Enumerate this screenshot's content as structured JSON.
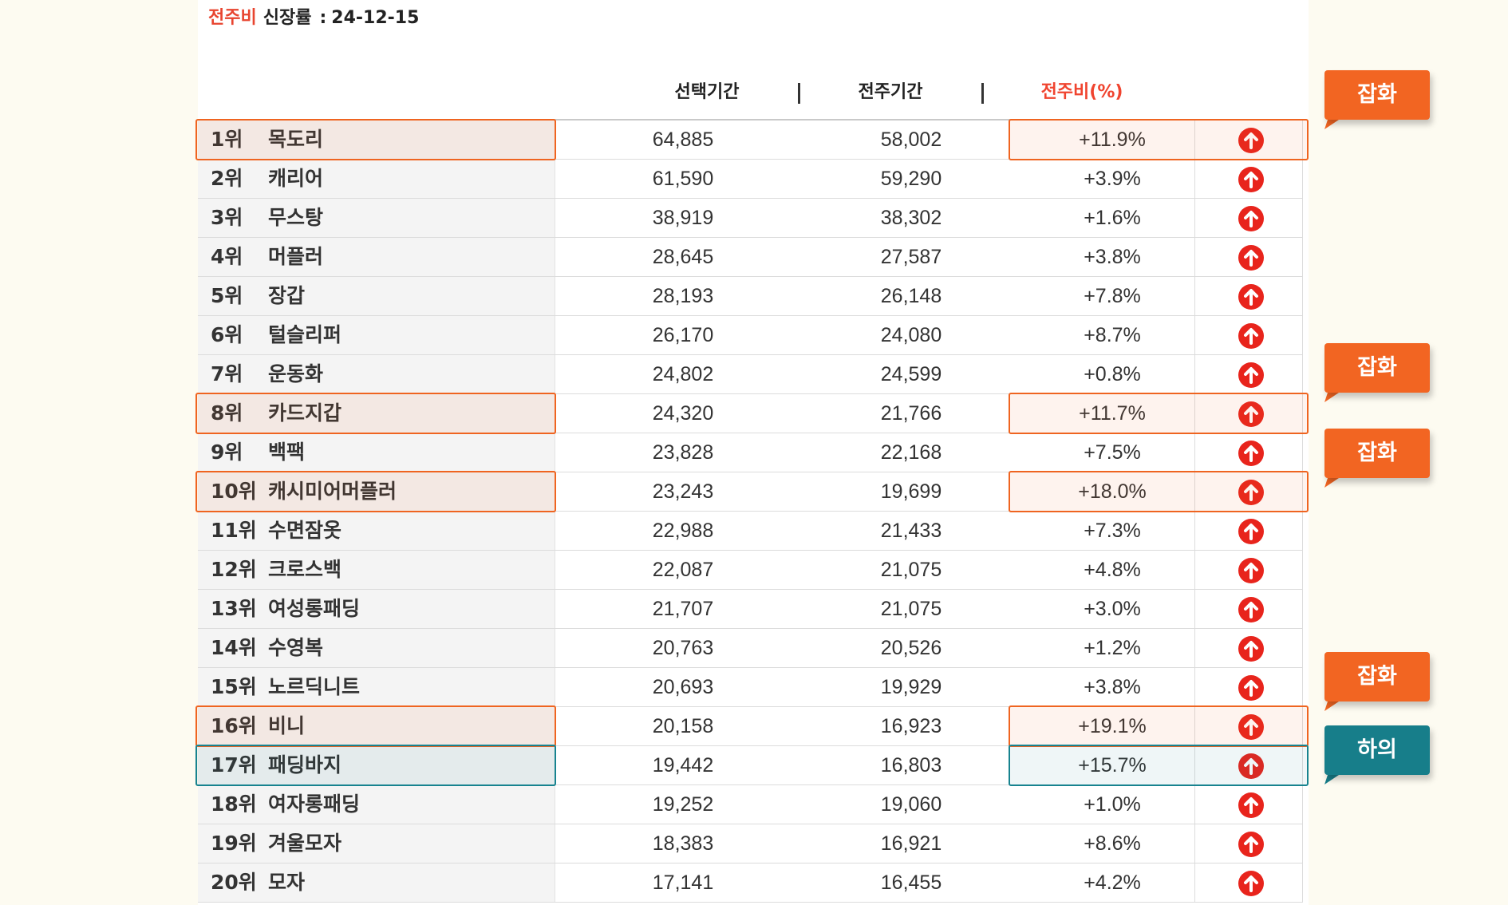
{
  "header": {
    "label_accent": "전주비",
    "label_main": "신장률",
    "colon": ":",
    "date": "24-12-15"
  },
  "columns": {
    "selected": "선택기간",
    "previous": "전주기간",
    "change": "전주비(%)"
  },
  "rows": [
    {
      "rank": "1위",
      "keyword": "목도리",
      "selected": "64,885",
      "previous": "58,002",
      "change": "+11.9%"
    },
    {
      "rank": "2위",
      "keyword": "캐리어",
      "selected": "61,590",
      "previous": "59,290",
      "change": "+3.9%"
    },
    {
      "rank": "3위",
      "keyword": "무스탕",
      "selected": "38,919",
      "previous": "38,302",
      "change": "+1.6%"
    },
    {
      "rank": "4위",
      "keyword": "머플러",
      "selected": "28,645",
      "previous": "27,587",
      "change": "+3.8%"
    },
    {
      "rank": "5위",
      "keyword": "장갑",
      "selected": "28,193",
      "previous": "26,148",
      "change": "+7.8%"
    },
    {
      "rank": "6위",
      "keyword": "털슬리퍼",
      "selected": "26,170",
      "previous": "24,080",
      "change": "+8.7%"
    },
    {
      "rank": "7위",
      "keyword": "운동화",
      "selected": "24,802",
      "previous": "24,599",
      "change": "+0.8%"
    },
    {
      "rank": "8위",
      "keyword": "카드지갑",
      "selected": "24,320",
      "previous": "21,766",
      "change": "+11.7%"
    },
    {
      "rank": "9위",
      "keyword": "백팩",
      "selected": "23,828",
      "previous": "22,168",
      "change": "+7.5%"
    },
    {
      "rank": "10위",
      "keyword": "캐시미어머플러",
      "selected": "23,243",
      "previous": "19,699",
      "change": "+18.0%"
    },
    {
      "rank": "11위",
      "keyword": "수면잠옷",
      "selected": "22,988",
      "previous": "21,433",
      "change": "+7.3%"
    },
    {
      "rank": "12위",
      "keyword": "크로스백",
      "selected": "22,087",
      "previous": "21,075",
      "change": "+4.8%"
    },
    {
      "rank": "13위",
      "keyword": "여성롱패딩",
      "selected": "21,707",
      "previous": "21,075",
      "change": "+3.0%"
    },
    {
      "rank": "14위",
      "keyword": "수영복",
      "selected": "20,763",
      "previous": "20,526",
      "change": "+1.2%"
    },
    {
      "rank": "15위",
      "keyword": "노르딕니트",
      "selected": "20,693",
      "previous": "19,929",
      "change": "+3.8%"
    },
    {
      "rank": "16위",
      "keyword": "비니",
      "selected": "20,158",
      "previous": "16,923",
      "change": "+19.1%"
    },
    {
      "rank": "17위",
      "keyword": "패딩바지",
      "selected": "19,442",
      "previous": "16,803",
      "change": "+15.7%"
    },
    {
      "rank": "18위",
      "keyword": "여자롱패딩",
      "selected": "19,252",
      "previous": "19,060",
      "change": "+1.0%"
    },
    {
      "rank": "19위",
      "keyword": "겨울모자",
      "selected": "18,383",
      "previous": "16,921",
      "change": "+8.6%"
    },
    {
      "rank": "20위",
      "keyword": "모자",
      "selected": "17,141",
      "previous": "16,455",
      "change": "+4.2%"
    }
  ],
  "callouts": [
    {
      "text": "잡화",
      "color": "#f26522",
      "row": 0
    },
    {
      "text": "잡화",
      "color": "#f26522",
      "row": 7
    },
    {
      "text": "잡화",
      "color": "#f26522",
      "row": 9
    },
    {
      "text": "잡화",
      "color": "#f26522",
      "row": 15
    },
    {
      "text": "하의",
      "color": "#177e8a",
      "row": 16
    }
  ],
  "colors": {
    "accent_red": "#e8442f",
    "highlight_orange": "#ef6420",
    "highlight_teal": "#17838f",
    "up_icon": "#e8241c"
  },
  "icons": {
    "trend": "arrow-up-circle-icon"
  }
}
